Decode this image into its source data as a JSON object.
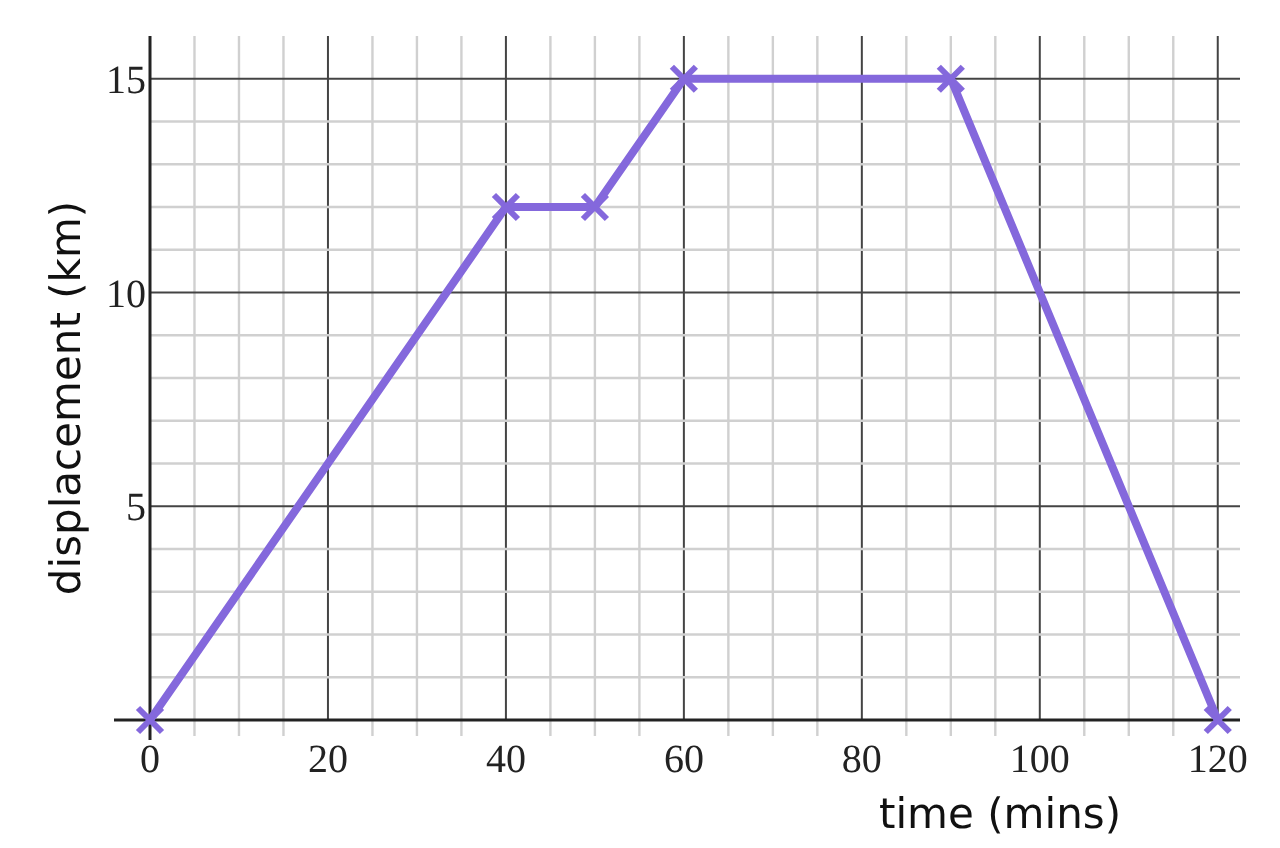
{
  "chart_data": {
    "type": "line",
    "xlabel": "time (mins)",
    "ylabel": "displacement (km)",
    "x": [
      0,
      40,
      50,
      60,
      90,
      120
    ],
    "series": [
      {
        "color": "#8468dc",
        "values": [
          0,
          12,
          12,
          15,
          15,
          0
        ]
      }
    ],
    "xlim": [
      0,
      122.5
    ],
    "ylim": [
      0,
      16
    ],
    "xticks": [
      0,
      {
        "value": 5,
        "label": null
      },
      {
        "value": 10,
        "label": null
      },
      {
        "value": 15,
        "label": null
      },
      20,
      {
        "value": 25,
        "label": null
      },
      {
        "value": 30,
        "label": null
      },
      {
        "value": 35,
        "label": null
      },
      40,
      {
        "value": 45,
        "label": null
      },
      {
        "value": 50,
        "label": null
      },
      {
        "value": 55,
        "label": null
      },
      60,
      {
        "value": 65,
        "label": null
      },
      {
        "value": 70,
        "label": null
      },
      {
        "value": 75,
        "label": null
      },
      80,
      {
        "value": 85,
        "label": null
      },
      {
        "value": 90,
        "label": null
      },
      {
        "value": 95,
        "label": null
      },
      100,
      {
        "value": 105,
        "label": null
      },
      {
        "value": 110,
        "label": null
      },
      {
        "value": 115,
        "label": null
      },
      120
    ],
    "yticks": [
      {
        "value": 1,
        "label": null
      },
      {
        "value": 2,
        "label": null
      },
      {
        "value": 3,
        "label": null
      },
      {
        "value": 4,
        "label": null
      },
      5,
      {
        "value": 6,
        "label": null
      },
      {
        "value": 7,
        "label": null
      },
      {
        "value": 8,
        "label": null
      },
      {
        "value": 9,
        "label": null
      },
      10,
      {
        "value": 11,
        "label": null
      },
      {
        "value": 12,
        "label": null
      },
      {
        "value": 13,
        "label": null
      },
      {
        "value": 14,
        "label": null
      },
      15
    ],
    "grid": true,
    "marker": "cross",
    "line_style": "solid"
  }
}
